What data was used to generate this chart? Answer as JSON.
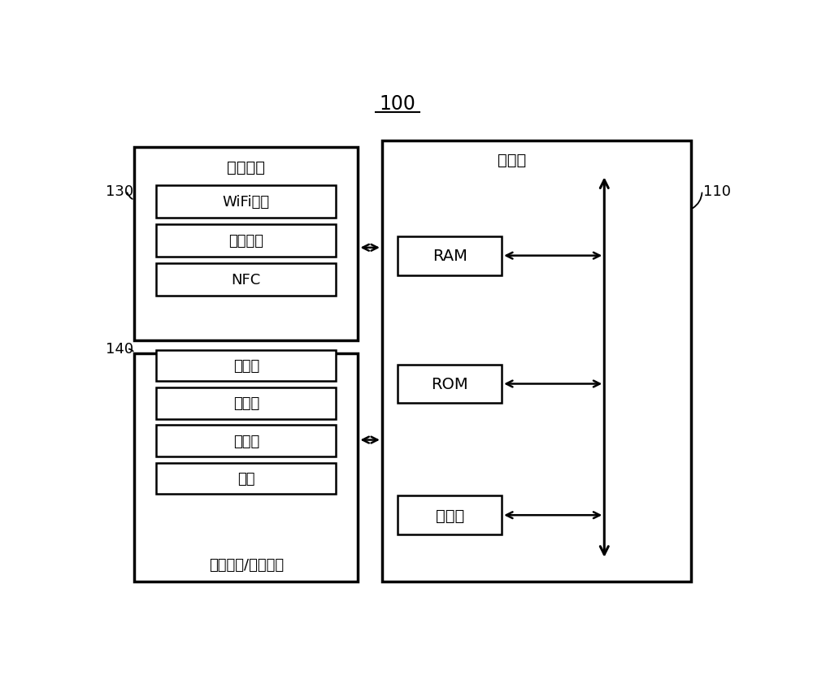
{
  "bg_color": "#ffffff",
  "fig_width": 10.0,
  "fig_height": 8.53,
  "label_100": "100",
  "label_130": "130",
  "label_140": "140",
  "label_110": "110",
  "controller_label": "控制器",
  "comm_interface_label": "通信接口",
  "user_io_label": "用户输入/输出接口",
  "comm_items": [
    "WiFi芯片",
    "蓝牙模块",
    "NFC"
  ],
  "io_items": [
    "麦克风",
    "触摸板",
    "传感器",
    "按键"
  ],
  "controller_items": [
    "RAM",
    "ROM",
    "处理器"
  ]
}
